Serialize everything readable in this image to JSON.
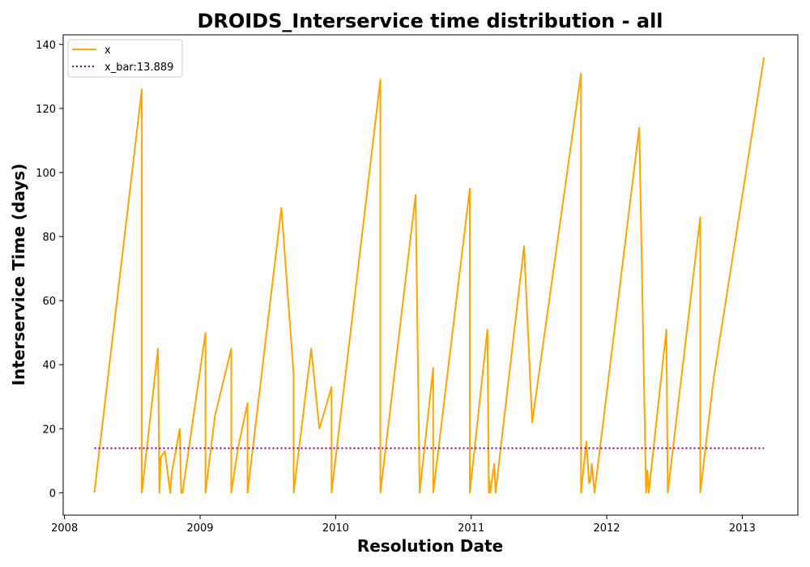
{
  "chart_data": {
    "type": "line",
    "title": "DROIDS_Interservice time distribution - all",
    "xlabel": "Resolution Date",
    "ylabel": "Interservice Time (days)",
    "xlim": [
      2007.99,
      2013.41
    ],
    "ylim": [
      -7,
      143
    ],
    "xticks": [
      2008,
      2009,
      2010,
      2011,
      2012,
      2013
    ],
    "xtick_labels": [
      "2008",
      "2009",
      "2010",
      "2011",
      "2012",
      "2013"
    ],
    "yticks": [
      0,
      20,
      40,
      60,
      80,
      100,
      120,
      140
    ],
    "ytick_labels": [
      "0",
      "20",
      "40",
      "60",
      "80",
      "100",
      "120",
      "140"
    ],
    "legend_position": "top-left",
    "colors": {
      "x": "#ffa500",
      "x_bar": "#800080"
    },
    "series": [
      {
        "name": "x",
        "style": "solid",
        "x": [
          2008.22,
          2008.57,
          2008.57,
          2008.69,
          2008.7,
          2008.71,
          2008.74,
          2008.78,
          2008.79,
          2008.85,
          2008.86,
          2008.87,
          2009.04,
          2009.04,
          2009.11,
          2009.23,
          2009.23,
          2009.28,
          2009.35,
          2009.35,
          2009.6,
          2009.69,
          2009.69,
          2009.82,
          2009.88,
          2009.97,
          2009.97,
          2010.33,
          2010.33,
          2010.59,
          2010.62,
          2010.72,
          2010.72,
          2010.99,
          2010.99,
          2011.12,
          2011.13,
          2011.13,
          2011.14,
          2011.17,
          2011.18,
          2011.39,
          2011.45,
          2011.81,
          2011.81,
          2011.85,
          2011.87,
          2011.88,
          2011.89,
          2011.91,
          2012.24,
          2012.29,
          2012.3,
          2012.31,
          2012.44,
          2012.45,
          2012.69,
          2012.69,
          2012.79,
          2013.16
        ],
        "y": [
          0,
          126,
          0,
          45,
          0,
          11,
          13,
          0,
          6,
          20,
          0,
          0,
          50,
          0,
          24,
          45,
          0,
          14,
          28,
          0,
          89,
          37,
          0,
          45,
          20,
          33,
          0,
          129,
          0,
          93,
          0,
          39,
          0,
          95,
          0,
          51,
          0,
          5,
          0,
          9,
          0,
          77,
          22,
          131,
          0,
          16,
          3,
          4,
          9,
          0,
          114,
          0,
          7,
          0,
          51,
          0,
          86,
          0,
          36,
          136
        ]
      },
      {
        "name": "x_bar:13.889",
        "style": "dotted",
        "x": [
          2008.22,
          2013.16
        ],
        "y": [
          13.889,
          13.889
        ]
      }
    ]
  }
}
